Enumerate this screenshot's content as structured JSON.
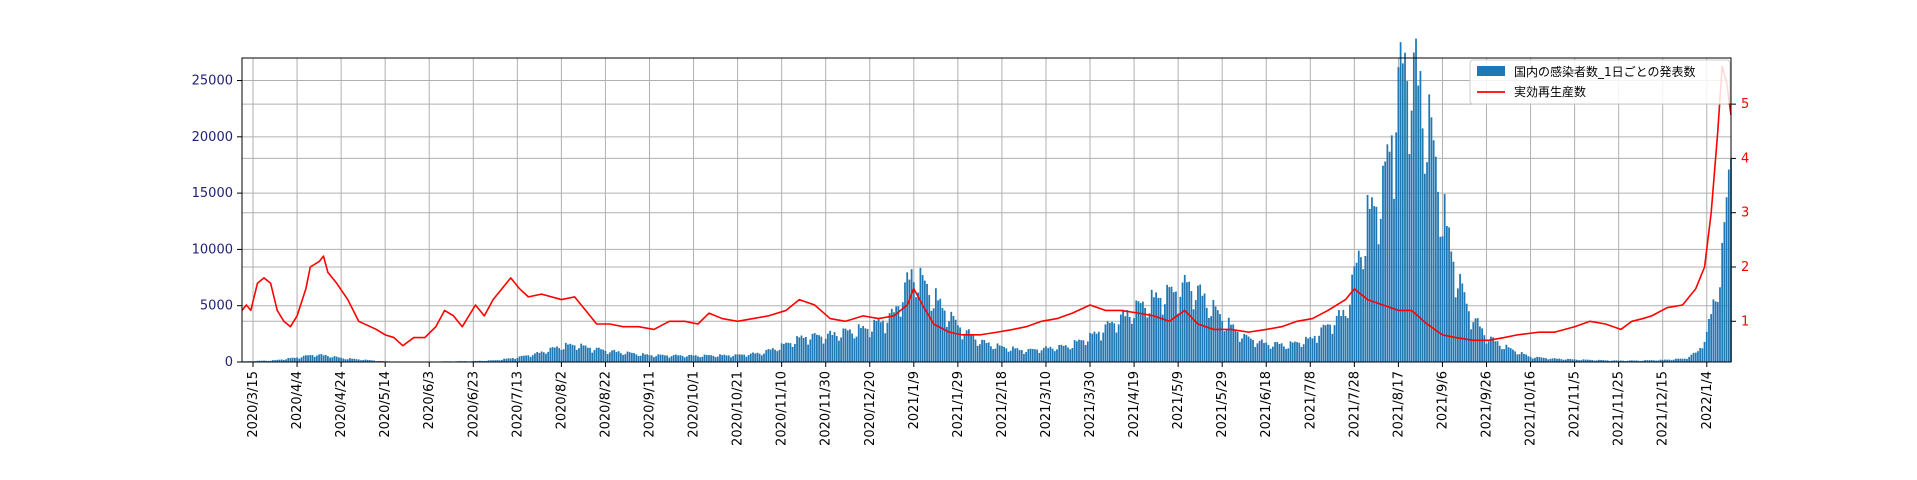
{
  "chart_data": {
    "type": "bar+line",
    "x_start": "2020-03-10",
    "x_end": "2022-01-15",
    "xtick_labels": [
      "2020/3/15",
      "2020/4/4",
      "2020/4/24",
      "2020/5/14",
      "2020/6/3",
      "2020/6/23",
      "2020/7/13",
      "2020/8/2",
      "2020/8/22",
      "2020/9/11",
      "2020/10/1",
      "2020/10/21",
      "2020/11/10",
      "2020/11/30",
      "2020/12/20",
      "2021/1/9",
      "2021/1/29",
      "2021/2/18",
      "2021/3/10",
      "2021/3/30",
      "2021/4/19",
      "2021/5/9",
      "2021/5/29",
      "2021/6/18",
      "2021/7/8",
      "2021/7/28",
      "2021/8/17",
      "2021/9/6",
      "2021/9/26",
      "2021/10/16",
      "2021/11/5",
      "2021/11/25",
      "2021/12/15",
      "2022/1/4"
    ],
    "y_left": {
      "lim": [
        0,
        27000
      ],
      "ticks": [
        0,
        5000,
        10000,
        15000,
        20000,
        25000
      ],
      "color": "#1f1f7a"
    },
    "y_right": {
      "lim": [
        0.25,
        5.85
      ],
      "ticks": [
        1,
        2,
        3,
        4,
        5
      ],
      "color": "#ff0000"
    },
    "grid": true,
    "legend_position": "top-right",
    "series": [
      {
        "name": "国内の感染者数_1日ごとの発表数",
        "kind": "bar",
        "axis": "left",
        "color": "#1f77b4",
        "anchors": [
          [
            "2020-03-10",
            50
          ],
          [
            "2020-03-25",
            150
          ],
          [
            "2020-04-04",
            400
          ],
          [
            "2020-04-12",
            650
          ],
          [
            "2020-04-18",
            560
          ],
          [
            "2020-04-24",
            350
          ],
          [
            "2020-05-04",
            200
          ],
          [
            "2020-05-14",
            60
          ],
          [
            "2020-05-24",
            30
          ],
          [
            "2020-06-03",
            40
          ],
          [
            "2020-06-23",
            80
          ],
          [
            "2020-07-03",
            150
          ],
          [
            "2020-07-13",
            400
          ],
          [
            "2020-07-23",
            800
          ],
          [
            "2020-08-02",
            1400
          ],
          [
            "2020-08-08",
            1500
          ],
          [
            "2020-08-22",
            1000
          ],
          [
            "2020-09-11",
            600
          ],
          [
            "2020-10-01",
            550
          ],
          [
            "2020-10-21",
            600
          ],
          [
            "2020-11-01",
            800
          ],
          [
            "2020-11-10",
            1400
          ],
          [
            "2020-11-20",
            2200
          ],
          [
            "2020-11-30",
            2300
          ],
          [
            "2020-12-20",
            3000
          ],
          [
            "2020-12-31",
            4200
          ],
          [
            "2021-01-07",
            7300
          ],
          [
            "2021-01-09",
            7800
          ],
          [
            "2021-01-15",
            6500
          ],
          [
            "2021-01-22",
            4800
          ],
          [
            "2021-01-29",
            3200
          ],
          [
            "2021-02-08",
            1800
          ],
          [
            "2021-02-18",
            1300
          ],
          [
            "2021-03-01",
            1000
          ],
          [
            "2021-03-10",
            1200
          ],
          [
            "2021-03-20",
            1400
          ],
          [
            "2021-03-30",
            2200
          ],
          [
            "2021-04-10",
            3500
          ],
          [
            "2021-04-19",
            4600
          ],
          [
            "2021-04-28",
            5500
          ],
          [
            "2021-05-09",
            6300
          ],
          [
            "2021-05-13",
            6800
          ],
          [
            "2021-05-20",
            5800
          ],
          [
            "2021-05-29",
            3800
          ],
          [
            "2021-06-08",
            2200
          ],
          [
            "2021-06-18",
            1600
          ],
          [
            "2021-06-28",
            1500
          ],
          [
            "2021-07-08",
            2000
          ],
          [
            "2021-07-18",
            3500
          ],
          [
            "2021-07-24",
            4400
          ],
          [
            "2021-07-28",
            7500
          ],
          [
            "2021-08-03",
            12500
          ],
          [
            "2021-08-10",
            15000
          ],
          [
            "2021-08-14",
            20000
          ],
          [
            "2021-08-17",
            24000
          ],
          [
            "2021-08-20",
            25800
          ],
          [
            "2021-08-26",
            24500
          ],
          [
            "2021-09-01",
            19500
          ],
          [
            "2021-09-06",
            13500
          ],
          [
            "2021-09-12",
            8000
          ],
          [
            "2021-09-18",
            4500
          ],
          [
            "2021-09-26",
            2200
          ],
          [
            "2021-10-06",
            1200
          ],
          [
            "2021-10-16",
            450
          ],
          [
            "2021-10-26",
            300
          ],
          [
            "2021-11-05",
            220
          ],
          [
            "2021-11-25",
            120
          ],
          [
            "2021-12-05",
            130
          ],
          [
            "2021-12-15",
            180
          ],
          [
            "2021-12-25",
            300
          ],
          [
            "2021-12-31",
            900
          ],
          [
            "2022-01-04",
            2400
          ],
          [
            "2022-01-08",
            6000
          ],
          [
            "2022-01-11",
            9000
          ],
          [
            "2022-01-13",
            13500
          ],
          [
            "2022-01-15",
            18800
          ]
        ]
      },
      {
        "name": "実効再生産数",
        "kind": "line",
        "axis": "right",
        "color": "#ff0000",
        "anchors": [
          [
            "2020-03-10",
            1.2
          ],
          [
            "2020-03-12",
            1.3
          ],
          [
            "2020-03-14",
            1.2
          ],
          [
            "2020-03-17",
            1.7
          ],
          [
            "2020-03-20",
            1.8
          ],
          [
            "2020-03-23",
            1.7
          ],
          [
            "2020-03-26",
            1.2
          ],
          [
            "2020-03-29",
            1.0
          ],
          [
            "2020-04-01",
            0.9
          ],
          [
            "2020-04-04",
            1.1
          ],
          [
            "2020-04-08",
            1.6
          ],
          [
            "2020-04-10",
            2.0
          ],
          [
            "2020-04-14",
            2.1
          ],
          [
            "2020-04-16",
            2.2
          ],
          [
            "2020-04-18",
            1.9
          ],
          [
            "2020-04-22",
            1.7
          ],
          [
            "2020-04-27",
            1.4
          ],
          [
            "2020-05-02",
            1.0
          ],
          [
            "2020-05-10",
            0.85
          ],
          [
            "2020-05-14",
            0.75
          ],
          [
            "2020-05-18",
            0.7
          ],
          [
            "2020-05-22",
            0.55
          ],
          [
            "2020-05-27",
            0.7
          ],
          [
            "2020-06-01",
            0.7
          ],
          [
            "2020-06-06",
            0.9
          ],
          [
            "2020-06-10",
            1.2
          ],
          [
            "2020-06-14",
            1.1
          ],
          [
            "2020-06-18",
            0.9
          ],
          [
            "2020-06-24",
            1.3
          ],
          [
            "2020-06-28",
            1.1
          ],
          [
            "2020-07-02",
            1.4
          ],
          [
            "2020-07-06",
            1.6
          ],
          [
            "2020-07-10",
            1.8
          ],
          [
            "2020-07-14",
            1.6
          ],
          [
            "2020-07-18",
            1.45
          ],
          [
            "2020-07-24",
            1.5
          ],
          [
            "2020-08-02",
            1.4
          ],
          [
            "2020-08-08",
            1.45
          ],
          [
            "2020-08-13",
            1.2
          ],
          [
            "2020-08-18",
            0.95
          ],
          [
            "2020-08-24",
            0.95
          ],
          [
            "2020-08-30",
            0.9
          ],
          [
            "2020-09-06",
            0.9
          ],
          [
            "2020-09-13",
            0.85
          ],
          [
            "2020-09-20",
            1.0
          ],
          [
            "2020-09-27",
            1.0
          ],
          [
            "2020-10-03",
            0.95
          ],
          [
            "2020-10-08",
            1.15
          ],
          [
            "2020-10-14",
            1.05
          ],
          [
            "2020-10-21",
            1.0
          ],
          [
            "2020-10-28",
            1.05
          ],
          [
            "2020-11-04",
            1.1
          ],
          [
            "2020-11-12",
            1.2
          ],
          [
            "2020-11-18",
            1.4
          ],
          [
            "2020-11-25",
            1.3
          ],
          [
            "2020-12-02",
            1.05
          ],
          [
            "2020-12-09",
            1.0
          ],
          [
            "2020-12-17",
            1.1
          ],
          [
            "2020-12-24",
            1.05
          ],
          [
            "2020-12-31",
            1.1
          ],
          [
            "2021-01-03",
            1.2
          ],
          [
            "2021-01-06",
            1.3
          ],
          [
            "2021-01-09",
            1.6
          ],
          [
            "2021-01-13",
            1.3
          ],
          [
            "2021-01-18",
            0.95
          ],
          [
            "2021-01-25",
            0.8
          ],
          [
            "2021-01-31",
            0.75
          ],
          [
            "2021-02-08",
            0.75
          ],
          [
            "2021-02-16",
            0.8
          ],
          [
            "2021-02-23",
            0.85
          ],
          [
            "2021-03-01",
            0.9
          ],
          [
            "2021-03-08",
            1.0
          ],
          [
            "2021-03-15",
            1.05
          ],
          [
            "2021-03-22",
            1.15
          ],
          [
            "2021-03-30",
            1.3
          ],
          [
            "2021-04-06",
            1.2
          ],
          [
            "2021-04-13",
            1.2
          ],
          [
            "2021-04-21",
            1.15
          ],
          [
            "2021-04-28",
            1.1
          ],
          [
            "2021-05-05",
            1.0
          ],
          [
            "2021-05-12",
            1.2
          ],
          [
            "2021-05-18",
            0.95
          ],
          [
            "2021-05-25",
            0.85
          ],
          [
            "2021-06-02",
            0.85
          ],
          [
            "2021-06-10",
            0.8
          ],
          [
            "2021-06-18",
            0.85
          ],
          [
            "2021-06-25",
            0.9
          ],
          [
            "2021-07-02",
            1.0
          ],
          [
            "2021-07-09",
            1.05
          ],
          [
            "2021-07-16",
            1.2
          ],
          [
            "2021-07-24",
            1.4
          ],
          [
            "2021-07-28",
            1.6
          ],
          [
            "2021-08-03",
            1.4
          ],
          [
            "2021-08-10",
            1.3
          ],
          [
            "2021-08-17",
            1.2
          ],
          [
            "2021-08-23",
            1.2
          ],
          [
            "2021-08-30",
            0.95
          ],
          [
            "2021-09-06",
            0.75
          ],
          [
            "2021-09-12",
            0.7
          ],
          [
            "2021-09-20",
            0.65
          ],
          [
            "2021-09-27",
            0.65
          ],
          [
            "2021-10-04",
            0.7
          ],
          [
            "2021-10-10",
            0.75
          ],
          [
            "2021-10-20",
            0.8
          ],
          [
            "2021-10-27",
            0.8
          ],
          [
            "2021-11-05",
            0.9
          ],
          [
            "2021-11-12",
            1.0
          ],
          [
            "2021-11-19",
            0.95
          ],
          [
            "2021-11-26",
            0.85
          ],
          [
            "2021-12-01",
            1.0
          ],
          [
            "2021-12-06",
            1.05
          ],
          [
            "2021-12-10",
            1.1
          ],
          [
            "2021-12-17",
            1.25
          ],
          [
            "2021-12-24",
            1.3
          ],
          [
            "2021-12-30",
            1.6
          ],
          [
            "2022-01-03",
            2.0
          ],
          [
            "2022-01-06",
            3.0
          ],
          [
            "2022-01-09",
            4.5
          ],
          [
            "2022-01-11",
            5.7
          ],
          [
            "2022-01-13",
            5.4
          ],
          [
            "2022-01-15",
            4.8
          ]
        ]
      }
    ]
  }
}
